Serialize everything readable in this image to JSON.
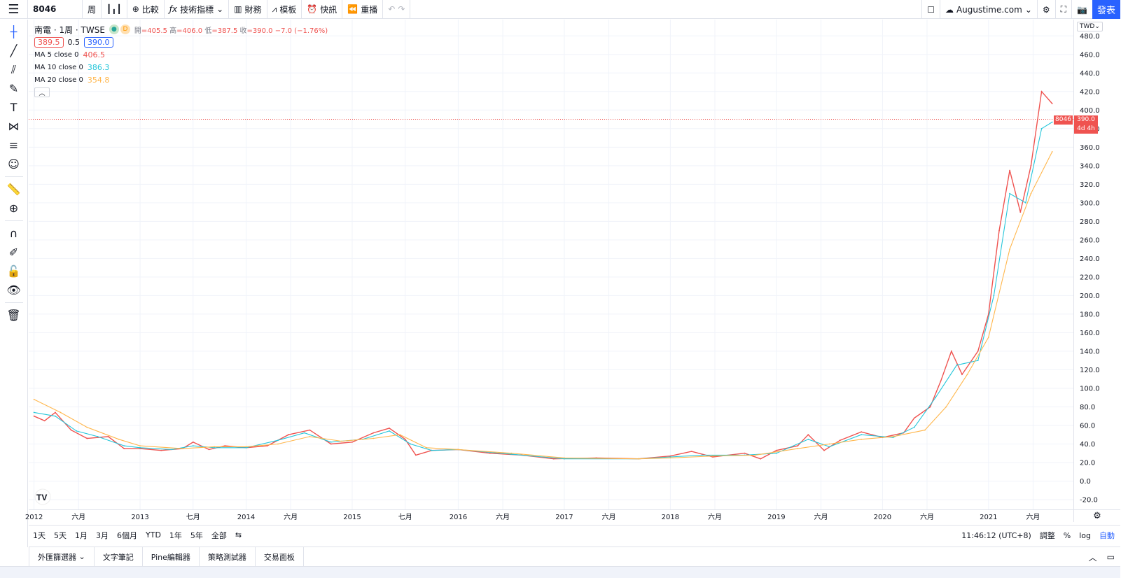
{
  "toolbar": {
    "symbol": "8046",
    "interval": "周",
    "compare": "比較",
    "indicators": "技術指標",
    "financials": "財務",
    "templates": "模板",
    "alert": "快訊",
    "replay": "重播",
    "cloud_layout": "Augustime.com",
    "publish": "發表"
  },
  "legend": {
    "title": "南電 · 1周 · TWSE",
    "badge_d": "D",
    "open_key": "開",
    "open": "=405.5",
    "high_key": "高",
    "high": "=406.0",
    "low_key": "低",
    "low": "=387.5",
    "close_key": "收",
    "close": "=390.0",
    "change": "−7.0 (−1.76%)",
    "bid": "389.5",
    "spread": "0.5",
    "ask": "390.0",
    "ma5_label": "MA 5 close 0",
    "ma5_value": "406.5",
    "ma10_label": "MA 10 close 0",
    "ma10_value": "386.3",
    "ma20_label": "MA 20 close 0",
    "ma20_value": "354.8"
  },
  "price_axis": {
    "currency": "TWD",
    "last_price": "390.0",
    "countdown": "4d 4h",
    "symbol_tag": "8046"
  },
  "ranges": [
    "1天",
    "5天",
    "1月",
    "3月",
    "6個月",
    "YTD",
    "1年",
    "5年",
    "全部"
  ],
  "range_bar": {
    "time": "11:46:12 (UTC+8)",
    "adjust": "調整",
    "percent": "%",
    "log": "log",
    "auto": "自動"
  },
  "footer_tabs": [
    "外匯篩選器",
    "文字筆記",
    "Pine編輯器",
    "策略測試器",
    "交易面板"
  ],
  "colors": {
    "up": "#26a69a",
    "down": "#ef5350",
    "ma5": "#ef5350",
    "ma10": "#26c6da",
    "ma20": "#ffb74d",
    "accent": "#2962ff"
  },
  "chart_data": {
    "type": "line",
    "title": "南電 · 1周 · TWSE",
    "ylim": [
      -20,
      490
    ],
    "y_ticks": [
      480,
      460,
      440,
      420,
      400,
      380,
      360,
      340,
      320,
      300,
      280,
      260,
      240,
      220,
      200,
      180,
      160,
      140,
      120,
      100,
      80,
      60,
      40,
      20,
      0,
      -20
    ],
    "x_ticks": [
      {
        "label": "2012",
        "t": 2012.0
      },
      {
        "label": "六月",
        "t": 2012.42
      },
      {
        "label": "2013",
        "t": 2013.0
      },
      {
        "label": "七月",
        "t": 2013.5
      },
      {
        "label": "2014",
        "t": 2014.0
      },
      {
        "label": "六月",
        "t": 2014.42
      },
      {
        "label": "2015",
        "t": 2015.0
      },
      {
        "label": "七月",
        "t": 2015.5
      },
      {
        "label": "2016",
        "t": 2016.0
      },
      {
        "label": "六月",
        "t": 2016.42
      },
      {
        "label": "2017",
        "t": 2017.0
      },
      {
        "label": "六月",
        "t": 2017.42
      },
      {
        "label": "2018",
        "t": 2018.0
      },
      {
        "label": "六月",
        "t": 2018.42
      },
      {
        "label": "2019",
        "t": 2019.0
      },
      {
        "label": "六月",
        "t": 2019.42
      },
      {
        "label": "2020",
        "t": 2020.0
      },
      {
        "label": "六月",
        "t": 2020.42
      },
      {
        "label": "2021",
        "t": 2021.0
      },
      {
        "label": "六月",
        "t": 2021.42
      }
    ],
    "x_range": [
      2011.95,
      2021.8
    ],
    "series": [
      {
        "name": "MA 5 close 0",
        "values": [
          [
            2012.0,
            70
          ],
          [
            2012.1,
            65
          ],
          [
            2012.2,
            74
          ],
          [
            2012.35,
            55
          ],
          [
            2012.5,
            46
          ],
          [
            2012.7,
            48
          ],
          [
            2012.85,
            35
          ],
          [
            2013.0,
            35
          ],
          [
            2013.2,
            33
          ],
          [
            2013.4,
            35
          ],
          [
            2013.5,
            42
          ],
          [
            2013.65,
            34
          ],
          [
            2013.8,
            38
          ],
          [
            2014.0,
            36
          ],
          [
            2014.2,
            38
          ],
          [
            2014.4,
            50
          ],
          [
            2014.6,
            55
          ],
          [
            2014.8,
            40
          ],
          [
            2015.0,
            42
          ],
          [
            2015.2,
            52
          ],
          [
            2015.35,
            57
          ],
          [
            2015.5,
            45
          ],
          [
            2015.6,
            28
          ],
          [
            2015.75,
            33
          ],
          [
            2016.0,
            34
          ],
          [
            2016.3,
            30
          ],
          [
            2016.6,
            28
          ],
          [
            2016.9,
            24
          ],
          [
            2017.3,
            25
          ],
          [
            2017.7,
            24
          ],
          [
            2018.0,
            27
          ],
          [
            2018.2,
            32
          ],
          [
            2018.4,
            26
          ],
          [
            2018.7,
            30
          ],
          [
            2018.85,
            24
          ],
          [
            2019.0,
            33
          ],
          [
            2019.2,
            38
          ],
          [
            2019.3,
            50
          ],
          [
            2019.45,
            33
          ],
          [
            2019.6,
            44
          ],
          [
            2019.8,
            53
          ],
          [
            2020.0,
            47
          ],
          [
            2020.2,
            52
          ],
          [
            2020.3,
            68
          ],
          [
            2020.45,
            80
          ],
          [
            2020.55,
            108
          ],
          [
            2020.65,
            140
          ],
          [
            2020.75,
            115
          ],
          [
            2020.9,
            140
          ],
          [
            2021.0,
            180
          ],
          [
            2021.1,
            270
          ],
          [
            2021.2,
            335
          ],
          [
            2021.3,
            290
          ],
          [
            2021.4,
            340
          ],
          [
            2021.5,
            420
          ],
          [
            2021.6,
            407
          ]
        ]
      },
      {
        "name": "MA 10 close 0",
        "values": [
          [
            2012.0,
            74
          ],
          [
            2012.2,
            70
          ],
          [
            2012.4,
            54
          ],
          [
            2012.6,
            48
          ],
          [
            2012.85,
            38
          ],
          [
            2013.0,
            36
          ],
          [
            2013.3,
            34
          ],
          [
            2013.5,
            38
          ],
          [
            2013.7,
            36
          ],
          [
            2014.0,
            36
          ],
          [
            2014.3,
            44
          ],
          [
            2014.55,
            52
          ],
          [
            2014.8,
            42
          ],
          [
            2015.1,
            45
          ],
          [
            2015.35,
            54
          ],
          [
            2015.55,
            40
          ],
          [
            2015.75,
            33
          ],
          [
            2016.0,
            34
          ],
          [
            2016.5,
            29
          ],
          [
            2017.0,
            24
          ],
          [
            2017.7,
            24
          ],
          [
            2018.0,
            26
          ],
          [
            2018.3,
            28
          ],
          [
            2018.7,
            28
          ],
          [
            2019.0,
            30
          ],
          [
            2019.3,
            45
          ],
          [
            2019.5,
            37
          ],
          [
            2019.8,
            50
          ],
          [
            2020.1,
            47
          ],
          [
            2020.3,
            58
          ],
          [
            2020.5,
            90
          ],
          [
            2020.7,
            125
          ],
          [
            2020.9,
            130
          ],
          [
            2021.05,
            200
          ],
          [
            2021.2,
            310
          ],
          [
            2021.35,
            300
          ],
          [
            2021.5,
            380
          ],
          [
            2021.6,
            387
          ]
        ]
      },
      {
        "name": "MA 20 close 0",
        "values": [
          [
            2012.0,
            88
          ],
          [
            2012.25,
            74
          ],
          [
            2012.5,
            58
          ],
          [
            2012.8,
            45
          ],
          [
            2013.0,
            38
          ],
          [
            2013.4,
            35
          ],
          [
            2013.7,
            37
          ],
          [
            2014.0,
            37
          ],
          [
            2014.3,
            40
          ],
          [
            2014.6,
            48
          ],
          [
            2014.9,
            43
          ],
          [
            2015.2,
            46
          ],
          [
            2015.45,
            50
          ],
          [
            2015.7,
            36
          ],
          [
            2016.0,
            34
          ],
          [
            2016.5,
            30
          ],
          [
            2017.0,
            25
          ],
          [
            2017.7,
            24
          ],
          [
            2018.0,
            25
          ],
          [
            2018.4,
            27
          ],
          [
            2018.8,
            28
          ],
          [
            2019.2,
            35
          ],
          [
            2019.5,
            40
          ],
          [
            2019.8,
            45
          ],
          [
            2020.1,
            48
          ],
          [
            2020.4,
            55
          ],
          [
            2020.6,
            80
          ],
          [
            2020.8,
            115
          ],
          [
            2021.0,
            155
          ],
          [
            2021.2,
            250
          ],
          [
            2021.4,
            310
          ],
          [
            2021.6,
            355
          ]
        ]
      }
    ],
    "last_close": 390.0
  }
}
